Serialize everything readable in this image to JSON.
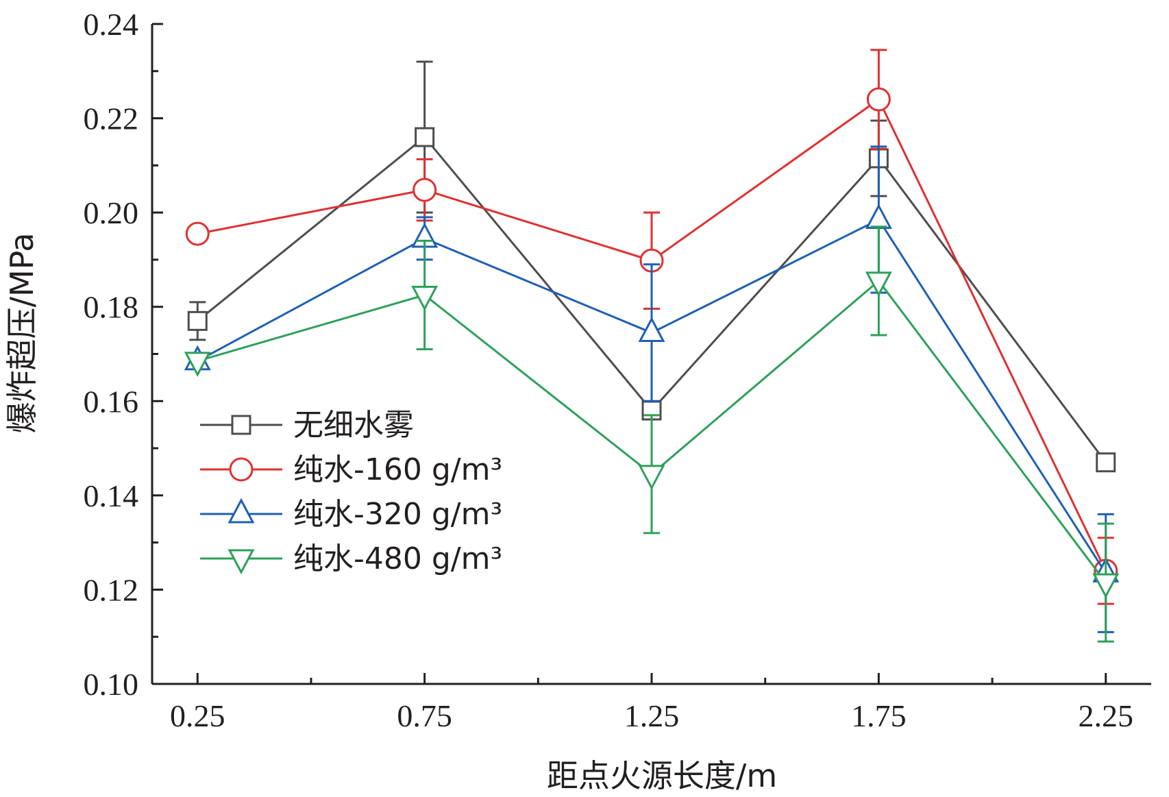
{
  "chart_data": {
    "type": "line",
    "xlabel": "距点火源长度/m",
    "ylabel": "爆炸超压/MPa",
    "xlim": [
      0.15,
      2.35
    ],
    "ylim": [
      0.1,
      0.24
    ],
    "x_ticks": [
      "0.25",
      "0.75",
      "1.25",
      "1.75",
      "2.25"
    ],
    "y_ticks": [
      "0.10",
      "0.12",
      "0.14",
      "0.16",
      "0.18",
      "0.20",
      "0.22",
      "0.24"
    ],
    "grid": false,
    "legend_position": "lower-left",
    "x": [
      0.25,
      0.75,
      1.25,
      1.75,
      2.25
    ],
    "series": [
      {
        "name": "无细水雾",
        "color": "#4d4d4d",
        "marker": "square",
        "values": [
          0.177,
          0.216,
          0.158,
          0.2115,
          0.147
        ],
        "errors": [
          0.004,
          0.016,
          0.0,
          0.008,
          0.0
        ]
      },
      {
        "name": "纯水-160 g/m³",
        "color": "#e03030",
        "marker": "circle",
        "values": [
          0.1955,
          0.2048,
          0.1898,
          0.224,
          0.124
        ],
        "errors": [
          0.0,
          0.0065,
          0.0102,
          0.0105,
          0.007
        ]
      },
      {
        "name": "纯水-320 g/m³",
        "color": "#1f5fb4",
        "marker": "triangle-up",
        "values": [
          0.1685,
          0.1945,
          0.1745,
          0.1985,
          0.1235
        ],
        "errors": [
          0.0,
          0.0045,
          0.0145,
          0.0155,
          0.0125
        ]
      },
      {
        "name": "纯水-480 g/m³",
        "color": "#2ea05a",
        "marker": "triangle-down",
        "values": [
          0.1685,
          0.1825,
          0.1445,
          0.1855,
          0.1215
        ],
        "errors": [
          0.0,
          0.0115,
          0.0125,
          0.0115,
          0.0125
        ]
      }
    ]
  }
}
